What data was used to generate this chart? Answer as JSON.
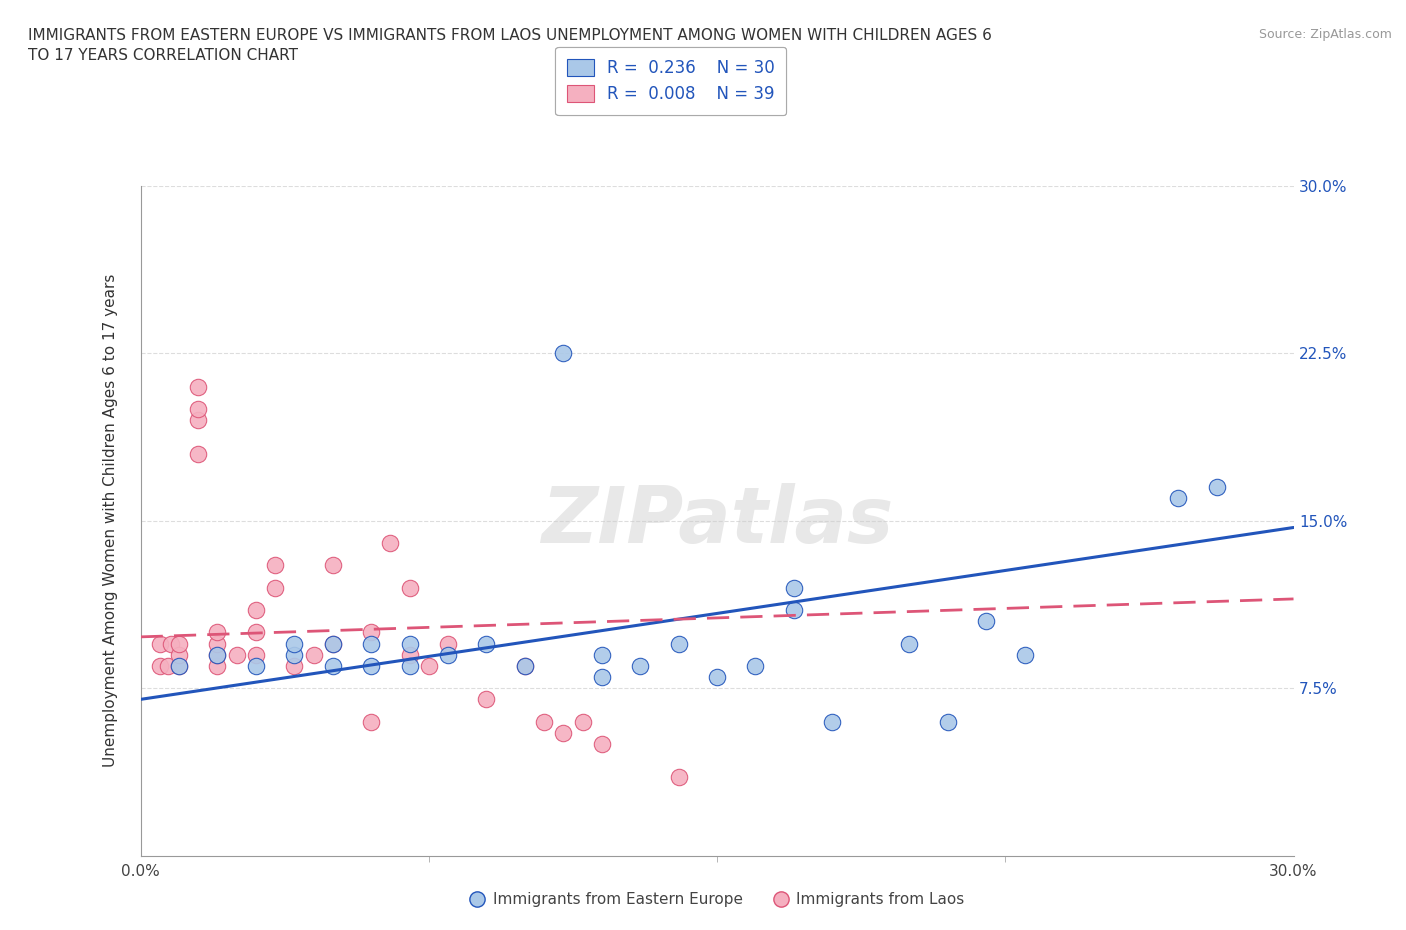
{
  "title": "IMMIGRANTS FROM EASTERN EUROPE VS IMMIGRANTS FROM LAOS UNEMPLOYMENT AMONG WOMEN WITH CHILDREN AGES 6\nTO 17 YEARS CORRELATION CHART",
  "source": "Source: ZipAtlas.com",
  "ylabel": "Unemployment Among Women with Children Ages 6 to 17 years",
  "xlim": [
    0,
    0.3
  ],
  "ylim": [
    0,
    0.3
  ],
  "R_blue": 0.236,
  "N_blue": 30,
  "R_pink": 0.008,
  "N_pink": 39,
  "blue_color": "#aac8e8",
  "pink_color": "#f5b0c0",
  "blue_line_color": "#2255bb",
  "pink_line_color": "#dd5577",
  "watermark": "ZIPatlas",
  "legend_label_blue": "Immigrants from Eastern Europe",
  "legend_label_pink": "Immigrants from Laos",
  "blue_scatter_x": [
    0.01,
    0.02,
    0.03,
    0.04,
    0.04,
    0.05,
    0.05,
    0.06,
    0.06,
    0.07,
    0.07,
    0.08,
    0.09,
    0.1,
    0.11,
    0.12,
    0.12,
    0.13,
    0.14,
    0.15,
    0.16,
    0.17,
    0.17,
    0.18,
    0.2,
    0.21,
    0.22,
    0.23,
    0.27,
    0.28
  ],
  "blue_scatter_y": [
    0.085,
    0.09,
    0.085,
    0.09,
    0.095,
    0.085,
    0.095,
    0.085,
    0.095,
    0.085,
    0.095,
    0.09,
    0.095,
    0.085,
    0.225,
    0.09,
    0.08,
    0.085,
    0.095,
    0.08,
    0.085,
    0.11,
    0.12,
    0.06,
    0.095,
    0.06,
    0.105,
    0.09,
    0.16,
    0.165
  ],
  "pink_scatter_x": [
    0.005,
    0.005,
    0.007,
    0.008,
    0.01,
    0.01,
    0.01,
    0.015,
    0.015,
    0.015,
    0.015,
    0.02,
    0.02,
    0.02,
    0.02,
    0.025,
    0.03,
    0.03,
    0.03,
    0.035,
    0.035,
    0.04,
    0.045,
    0.05,
    0.05,
    0.06,
    0.06,
    0.065,
    0.07,
    0.07,
    0.075,
    0.08,
    0.09,
    0.1,
    0.105,
    0.11,
    0.115,
    0.12,
    0.14
  ],
  "pink_scatter_y": [
    0.085,
    0.095,
    0.085,
    0.095,
    0.085,
    0.09,
    0.095,
    0.18,
    0.195,
    0.2,
    0.21,
    0.085,
    0.09,
    0.095,
    0.1,
    0.09,
    0.09,
    0.1,
    0.11,
    0.12,
    0.13,
    0.085,
    0.09,
    0.095,
    0.13,
    0.06,
    0.1,
    0.14,
    0.09,
    0.12,
    0.085,
    0.095,
    0.07,
    0.085,
    0.06,
    0.055,
    0.06,
    0.05,
    0.035
  ],
  "blue_trendline_x": [
    0.0,
    0.3
  ],
  "blue_trendline_y": [
    0.07,
    0.147
  ],
  "pink_trendline_x": [
    0.0,
    0.3
  ],
  "pink_trendline_y": [
    0.098,
    0.115
  ],
  "background_color": "#ffffff",
  "grid_color": "#dddddd"
}
